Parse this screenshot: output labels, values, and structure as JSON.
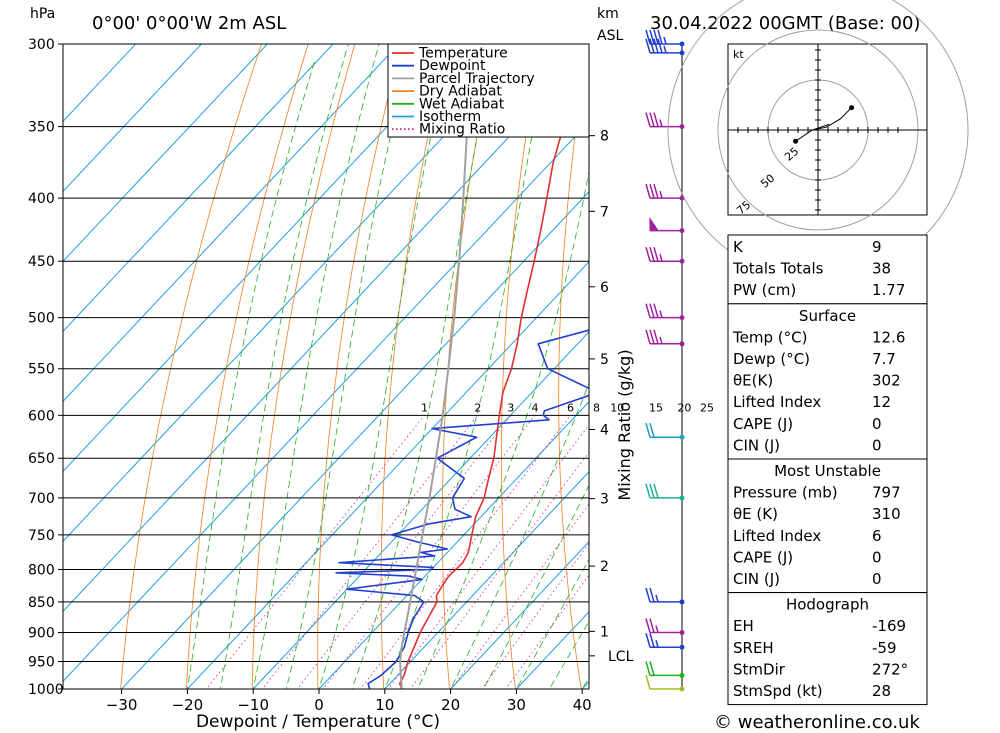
{
  "header": {
    "pressure_unit": "hPa",
    "location": "0°00' 0°00'W 2m ASL",
    "km_unit": "km",
    "asl": "ASL",
    "datetime": "30.04.2022 00GMT (Base: 00)"
  },
  "chart_data": {
    "type": "line",
    "subtype": "skew-T log-P diagram",
    "xlabel": "Dewpoint / Temperature (°C)",
    "x_ticks": [
      -30,
      -20,
      -10,
      0,
      10,
      20,
      30,
      40
    ],
    "xlim": [
      -40,
      41
    ],
    "p_levels": [
      300,
      350,
      400,
      450,
      500,
      550,
      600,
      650,
      700,
      750,
      800,
      850,
      900,
      950,
      1000
    ],
    "plim": [
      300,
      1000
    ],
    "km_ticks": [
      {
        "km": 1,
        "p": 898
      },
      {
        "km": 2,
        "p": 795
      },
      {
        "km": 3,
        "p": 701
      },
      {
        "km": 4,
        "p": 616
      },
      {
        "km": 5,
        "p": 540
      },
      {
        "km": 6,
        "p": 472
      },
      {
        "km": 7,
        "p": 410
      },
      {
        "km": 8,
        "p": 356
      }
    ],
    "lcl": {
      "label": "LCL",
      "p": 940
    },
    "mixing_ratio_label": "Mixing Ratio (g/kg)",
    "mixing_ratio_values": [
      "1",
      "2",
      "3",
      "4",
      "6",
      "8",
      "10",
      "15",
      "20",
      "25"
    ],
    "mixing_ratio_numbers": [
      1,
      2,
      3,
      4,
      6,
      8,
      10,
      15,
      20,
      25
    ],
    "legend": [
      {
        "name": "Temperature",
        "color": "#e03030",
        "dotted": false
      },
      {
        "name": "Dewpoint",
        "color": "#2040d0",
        "dotted": false
      },
      {
        "name": "Parcel Trajectory",
        "color": "#a0a0a0",
        "dotted": false
      },
      {
        "name": "Dry Adiabat",
        "color": "#f08020",
        "dotted": false
      },
      {
        "name": "Wet Adiabat",
        "color": "#20b020",
        "dotted": false
      },
      {
        "name": "Isotherm",
        "color": "#20a0e0",
        "dotted": false
      },
      {
        "name": "Mixing Ratio",
        "color": "#d02090",
        "dotted": true
      }
    ],
    "series": [
      {
        "name": "Temperature",
        "color": "#e03030",
        "points": [
          [
            1000,
            12.6
          ],
          [
            990,
            11.5
          ],
          [
            975,
            11.0
          ],
          [
            950,
            9.6
          ],
          [
            925,
            8.5
          ],
          [
            900,
            7.3
          ],
          [
            875,
            6.4
          ],
          [
            850,
            5.5
          ],
          [
            840,
            4.5
          ],
          [
            825,
            4.0
          ],
          [
            810,
            3.6
          ],
          [
            800,
            3.7
          ],
          [
            790,
            3.8
          ],
          [
            775,
            3.2
          ],
          [
            750,
            1.2
          ],
          [
            725,
            -0.8
          ],
          [
            700,
            -2.2
          ],
          [
            675,
            -4.3
          ],
          [
            650,
            -6.4
          ],
          [
            625,
            -9.0
          ],
          [
            600,
            -11.7
          ],
          [
            575,
            -14.4
          ],
          [
            550,
            -16.5
          ],
          [
            525,
            -19.2
          ],
          [
            500,
            -22.3
          ],
          [
            475,
            -25.3
          ],
          [
            450,
            -28.4
          ],
          [
            425,
            -31.8
          ],
          [
            400,
            -35.5
          ],
          [
            375,
            -39.5
          ],
          [
            350,
            -43.2
          ],
          [
            325,
            -47.5
          ],
          [
            300,
            -52.0
          ]
        ]
      },
      {
        "name": "Dewpoint",
        "color": "#2040d0",
        "points": [
          [
            1000,
            7.7
          ],
          [
            990,
            6.7
          ],
          [
            975,
            7.5
          ],
          [
            950,
            7.8
          ],
          [
            925,
            7.0
          ],
          [
            900,
            5.5
          ],
          [
            875,
            4.2
          ],
          [
            850,
            3.5
          ],
          [
            840,
            1.2
          ],
          [
            830,
            -10.0
          ],
          [
            815,
            0.0
          ],
          [
            810,
            -2.5
          ],
          [
            805,
            -14.0
          ],
          [
            800,
            0.0
          ],
          [
            797,
            0.0
          ],
          [
            790,
            -15.0
          ],
          [
            780,
            -1.5
          ],
          [
            775,
            -4.0
          ],
          [
            770,
            -0.5
          ],
          [
            760,
            -6.0
          ],
          [
            750,
            -11.0
          ],
          [
            735,
            -7.0
          ],
          [
            725,
            -1.5
          ],
          [
            715,
            -5.0
          ],
          [
            700,
            -7.0
          ],
          [
            675,
            -8.0
          ],
          [
            650,
            -15.0
          ],
          [
            625,
            -12.0
          ],
          [
            615,
            -20.0
          ],
          [
            605,
            -3.5
          ],
          [
            600,
            -5.0
          ],
          [
            595,
            -5.5
          ],
          [
            575,
            0.0
          ],
          [
            550,
            -11.0
          ],
          [
            525,
            -16.0
          ],
          [
            500,
            -5.0
          ],
          [
            490,
            -9.0
          ],
          [
            450,
            -12.0
          ],
          [
            400,
            -18.0
          ],
          [
            350,
            -29.0
          ],
          [
            300,
            -40.0
          ]
        ]
      },
      {
        "name": "Parcel Trajectory",
        "color": "#a0a0a0",
        "points": [
          [
            1000,
            12.6
          ],
          [
            975,
            10.5
          ],
          [
            950,
            8.4
          ],
          [
            925,
            6.6
          ],
          [
            900,
            4.9
          ],
          [
            875,
            3.2
          ],
          [
            850,
            1.4
          ],
          [
            800,
            -2.3
          ],
          [
            750,
            -6.3
          ],
          [
            700,
            -10.5
          ],
          [
            650,
            -15.2
          ],
          [
            600,
            -20.3
          ],
          [
            550,
            -26.1
          ],
          [
            500,
            -32.5
          ],
          [
            450,
            -39.8
          ],
          [
            400,
            -48.2
          ],
          [
            350,
            -57.8
          ],
          [
            300,
            -68.5
          ]
        ]
      }
    ]
  },
  "wind_barbs": [
    {
      "p": 300,
      "color": "#2040d0",
      "pennants": 0,
      "barbs": 4.5
    },
    {
      "p": 305,
      "color": "#2040d0",
      "pennants": 0,
      "barbs": 4.5
    },
    {
      "p": 350,
      "color": "#a020a0",
      "pennants": 0,
      "barbs": 3.5
    },
    {
      "p": 400,
      "color": "#a020a0",
      "pennants": 0,
      "barbs": 3.5
    },
    {
      "p": 425,
      "color": "#a020a0",
      "pennants": 1,
      "barbs": 0
    },
    {
      "p": 450,
      "color": "#a020a0",
      "pennants": 0,
      "barbs": 3.5
    },
    {
      "p": 500,
      "color": "#a020a0",
      "pennants": 0,
      "barbs": 3.5
    },
    {
      "p": 525,
      "color": "#a020a0",
      "pennants": 0,
      "barbs": 3.5
    },
    {
      "p": 625,
      "color": "#20a0c0",
      "pennants": 0,
      "barbs": 2
    },
    {
      "p": 700,
      "color": "#20b0a0",
      "pennants": 0,
      "barbs": 3
    },
    {
      "p": 850,
      "color": "#2040d0",
      "pennants": 0,
      "barbs": 2.5
    },
    {
      "p": 900,
      "color": "#a020a0",
      "pennants": 0,
      "barbs": 2.5
    },
    {
      "p": 925,
      "color": "#2040d0",
      "pennants": 0,
      "barbs": 2.5
    },
    {
      "p": 975,
      "color": "#20b020",
      "pennants": 0,
      "barbs": 2
    },
    {
      "p": 1000,
      "color": "#a0c020",
      "pennants": 0,
      "barbs": 1
    }
  ],
  "hodograph": {
    "unit": "kt",
    "ring_labels": [
      "25",
      "50",
      "75"
    ],
    "points": [
      [
        12,
        8
      ],
      [
        8,
        4
      ],
      [
        3,
        1
      ],
      [
        -2,
        0
      ],
      [
        -8,
        -4
      ],
      [
        -2,
        0
      ],
      [
        4,
        2
      ]
    ]
  },
  "indices": {
    "general": [
      {
        "label": "K",
        "value": "9"
      },
      {
        "label": "Totals Totals",
        "value": "38"
      },
      {
        "label": "PW (cm)",
        "value": "1.77"
      }
    ],
    "surface_title": "Surface",
    "surface": [
      {
        "label": "Temp (°C)",
        "value": "12.6"
      },
      {
        "label": "Dewp (°C)",
        "value": "7.7"
      },
      {
        "label": "θE(K)",
        "value": "302"
      },
      {
        "label": "Lifted Index",
        "value": "12"
      },
      {
        "label": "CAPE (J)",
        "value": "0"
      },
      {
        "label": "CIN (J)",
        "value": "0"
      }
    ],
    "mu_title": "Most Unstable",
    "mu": [
      {
        "label": "Pressure (mb)",
        "value": "797"
      },
      {
        "label": "θE (K)",
        "value": "310"
      },
      {
        "label": "Lifted Index",
        "value": "6"
      },
      {
        "label": "CAPE (J)",
        "value": "0"
      },
      {
        "label": "CIN (J)",
        "value": "0"
      }
    ],
    "hodo_title": "Hodograph",
    "hodo": [
      {
        "label": "EH",
        "value": "-169"
      },
      {
        "label": "SREH",
        "value": "-59"
      },
      {
        "label": "StmDir",
        "value": "272°"
      },
      {
        "label": "StmSpd (kt)",
        "value": "28"
      }
    ]
  },
  "footer": {
    "copyright": "© weatheronline.co.uk"
  }
}
